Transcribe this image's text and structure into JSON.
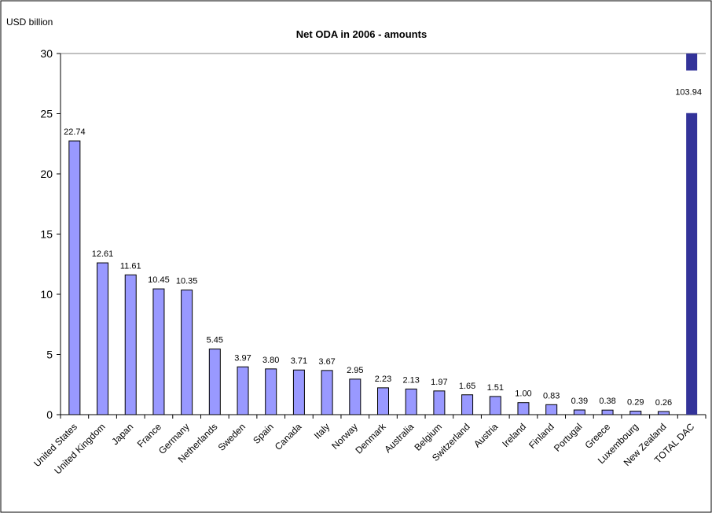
{
  "chart_data": {
    "type": "bar",
    "title": "Net ODA in 2006 - amounts",
    "ylabel": "USD billion",
    "xlabel": "",
    "ylim": [
      0,
      30
    ],
    "yticks": [
      0,
      5,
      10,
      15,
      20,
      25,
      30
    ],
    "grid": false,
    "categories": [
      "United States",
      "United Kingdom",
      "Japan",
      "France",
      "Germany",
      "Netherlands",
      "Sweden",
      "Spain",
      "Canada",
      "Italy",
      "Norway",
      "Denmark",
      "Australia",
      "Belgium",
      "Switzerland",
      "Austria",
      "Ireland",
      "Finland",
      "Portugal",
      "Greece",
      "Luxembourg",
      "New Zealand",
      "TOTAL DAC"
    ],
    "values": [
      22.74,
      12.61,
      11.61,
      10.45,
      10.35,
      5.45,
      3.97,
      3.8,
      3.71,
      3.67,
      2.95,
      2.23,
      2.13,
      1.97,
      1.65,
      1.51,
      1.0,
      0.83,
      0.39,
      0.38,
      0.29,
      0.26,
      103.94
    ],
    "value_labels": [
      "22.74",
      "12.61",
      "11.61",
      "10.45",
      "10.35",
      "5.45",
      "3.97",
      "3.80",
      "3.71",
      "3.67",
      "2.95",
      "2.23",
      "2.13",
      "1.97",
      "1.65",
      "1.51",
      "1.00",
      "0.83",
      "0.39",
      "0.38",
      "0.29",
      "0.26",
      "103.94"
    ],
    "broken_axis_categories": [
      "TOTAL DAC"
    ],
    "colors": {
      "bar": "#9999ff",
      "total_bar": "#333399",
      "bar_stroke": "#000000",
      "axis": "#000000"
    }
  }
}
